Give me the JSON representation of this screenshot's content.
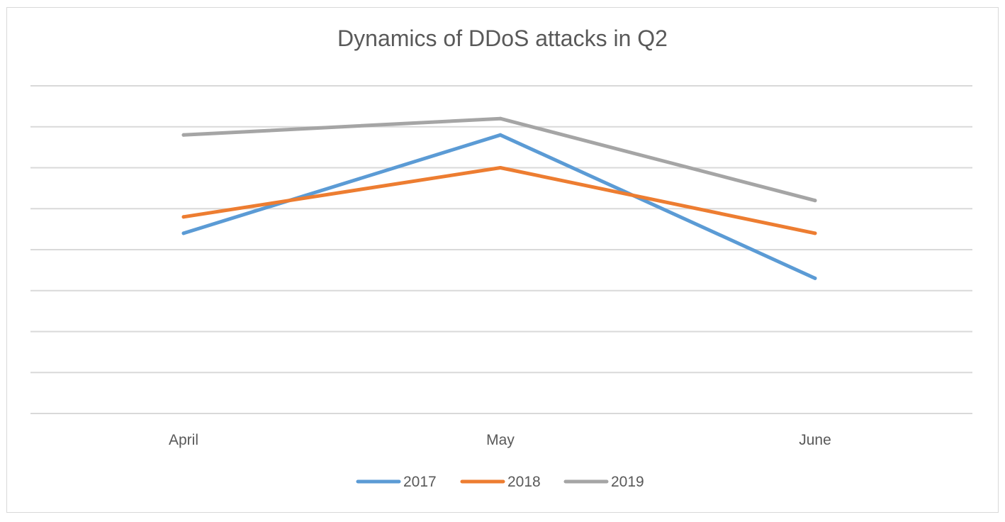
{
  "chart_data": {
    "type": "line",
    "title": "Dynamics of DDoS attacks in Q2",
    "xlabel": "",
    "ylabel": "",
    "categories": [
      "April",
      "May",
      "June"
    ],
    "ylim": [
      0,
      8
    ],
    "grid": true,
    "legend_position": "bottom",
    "series": [
      {
        "name": "2017",
        "color": "#5b9bd5",
        "values": [
          4.4,
          6.8,
          3.3
        ]
      },
      {
        "name": "2018",
        "color": "#ed7d31",
        "values": [
          4.8,
          6.0,
          4.4
        ]
      },
      {
        "name": "2019",
        "color": "#a5a5a5",
        "values": [
          6.8,
          7.2,
          5.2
        ]
      }
    ]
  }
}
